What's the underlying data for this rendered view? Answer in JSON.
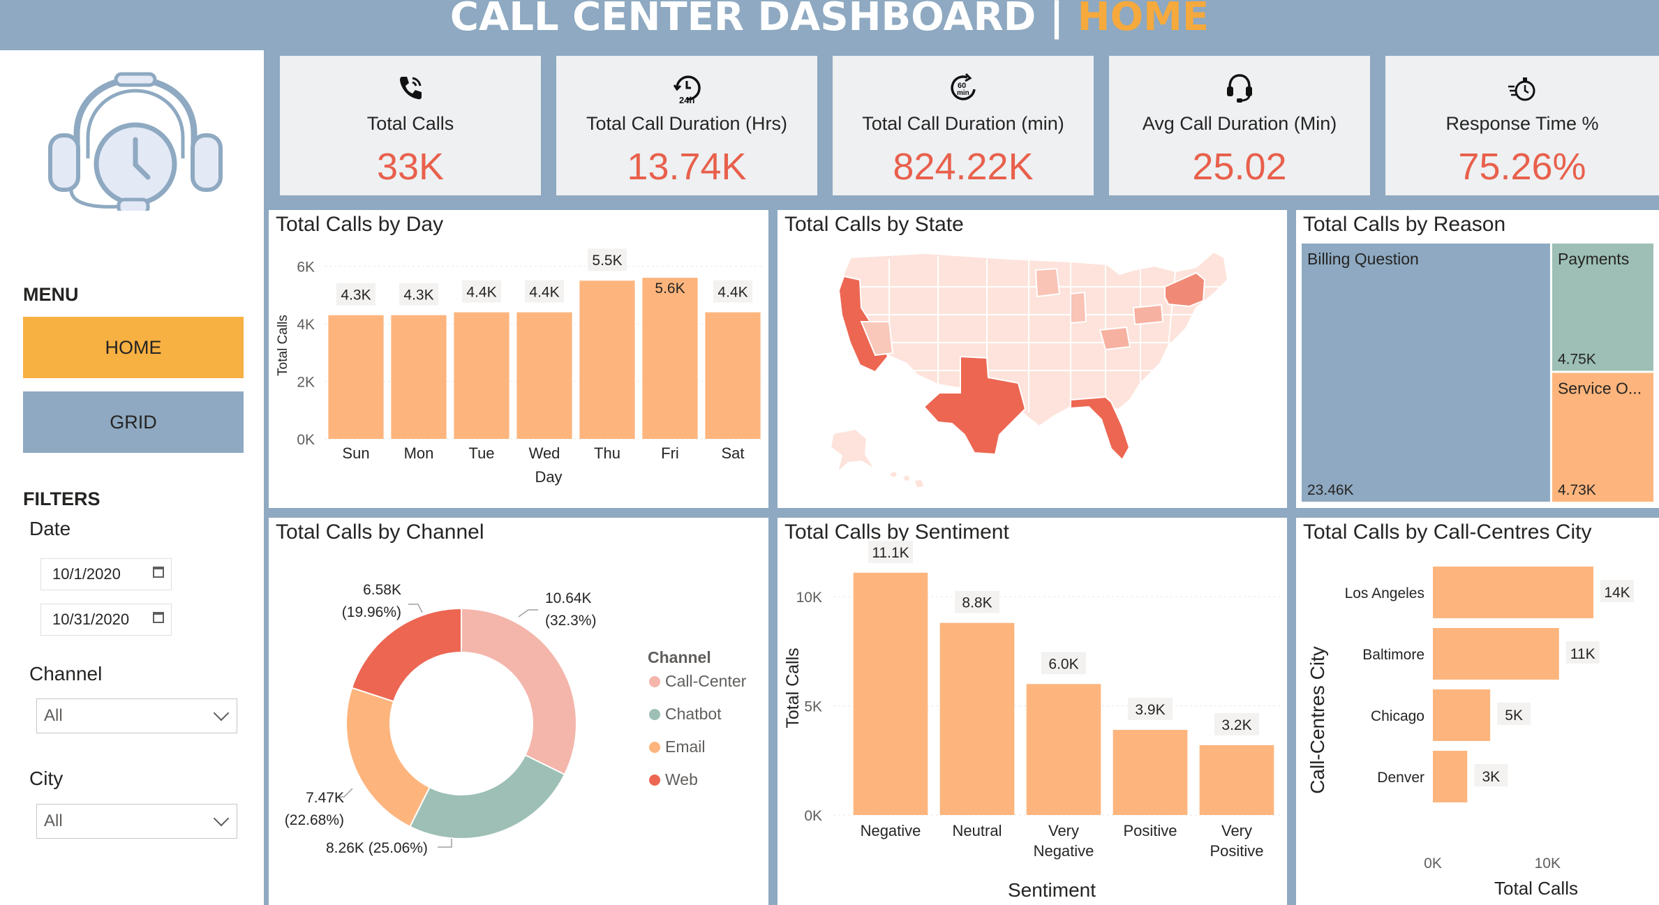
{
  "header": {
    "title": "CALL CENTER DASHBOARD",
    "separator": "|",
    "page": "HOME"
  },
  "sidebar": {
    "menu_heading": "MENU",
    "home_label": "HOME",
    "grid_label": "GRID",
    "filters_heading": "FILTERS",
    "date_label": "Date",
    "date_start": "10/1/2020",
    "date_end": "10/31/2020",
    "channel_label": "Channel",
    "channel_value": "All",
    "city_label": "City",
    "city_value": "All"
  },
  "kpis": [
    {
      "label": "Total Calls",
      "value": "33K",
      "icon": "phone-icon"
    },
    {
      "label": "Total Call Duration (Hrs)",
      "value": "13.74K",
      "icon": "clock-24h-icon"
    },
    {
      "label": "Total Call Duration (min)",
      "value": "824.22K",
      "icon": "timer-60min-icon"
    },
    {
      "label": "Avg Call Duration (Min)",
      "value": "25.02",
      "icon": "headset-icon"
    },
    {
      "label": "Response Time %",
      "value": "75.26%",
      "icon": "stopwatch-icon"
    }
  ],
  "colors": {
    "accent": "#e8604c",
    "bar": "#fdb57d",
    "steel": "#8ea9c1",
    "teal": "#9dbfb5",
    "pink": "#f4b6ab",
    "red": "#ec6652"
  },
  "panels": {
    "day": {
      "title": "Total Calls by Day"
    },
    "state": {
      "title": "Total Calls by State"
    },
    "reason": {
      "title": "Total Calls by Reason"
    },
    "channel": {
      "title": "Total Calls by Channel"
    },
    "sentiment": {
      "title": "Total Calls by Sentiment"
    },
    "city": {
      "title": "Total Calls by Call-Centres City"
    }
  },
  "chart_data": [
    {
      "id": "day",
      "type": "bar",
      "title": "Total Calls by Day",
      "xlabel": "Day",
      "ylabel": "Total Calls",
      "categories": [
        "Sun",
        "Mon",
        "Tue",
        "Wed",
        "Thu",
        "Fri",
        "Sat"
      ],
      "values": [
        4300,
        4300,
        4400,
        4400,
        5500,
        5600,
        4400
      ],
      "data_labels": [
        "4.3K",
        "4.3K",
        "4.4K",
        "4.4K",
        "5.5K",
        "5.6K",
        "4.4K"
      ],
      "yticks": [
        "0K",
        "2K",
        "4K",
        "6K"
      ],
      "ylim": [
        0,
        6500
      ],
      "grid": true
    },
    {
      "id": "state",
      "type": "map",
      "title": "Total Calls by State",
      "highlight": [
        "California",
        "Texas",
        "Florida",
        "New York"
      ]
    },
    {
      "id": "reason",
      "type": "treemap",
      "title": "Total Calls by Reason",
      "items": [
        {
          "name": "Billing Question",
          "value": 23460,
          "label": "23.46K"
        },
        {
          "name": "Payments",
          "value": 4750,
          "label": "4.75K"
        },
        {
          "name": "Service O...",
          "value": 4730,
          "label": "4.73K"
        }
      ]
    },
    {
      "id": "channel",
      "type": "pie",
      "title": "Total Calls by Channel",
      "legend_title": "Channel",
      "legend_position": "right",
      "slices": [
        {
          "name": "Call-Center",
          "value": 10640,
          "label": "10.64K",
          "pct": "(32.3%)"
        },
        {
          "name": "Chatbot",
          "value": 8260,
          "label": "8.26K (25.06%)",
          "pct": ""
        },
        {
          "name": "Email",
          "value": 7470,
          "label": "7.47K",
          "pct": "(22.68%)"
        },
        {
          "name": "Web",
          "value": 6580,
          "label": "6.58K",
          "pct": "(19.96%)"
        }
      ]
    },
    {
      "id": "sentiment",
      "type": "bar",
      "title": "Total Calls by Sentiment",
      "xlabel": "Sentiment",
      "ylabel": "Total Calls",
      "categories": [
        "Negative",
        "Neutral",
        "Very Negative",
        "Positive",
        "Very Positive"
      ],
      "values": [
        11100,
        8800,
        6000,
        3900,
        3200
      ],
      "data_labels": [
        "11.1K",
        "8.8K",
        "6.0K",
        "3.9K",
        "3.2K"
      ],
      "yticks": [
        "0K",
        "5K",
        "10K"
      ],
      "ylim": [
        0,
        11700
      ],
      "grid": true
    },
    {
      "id": "city",
      "type": "bar",
      "orientation": "horizontal",
      "title": "Total Calls by Call-Centres City",
      "xlabel": "Total Calls",
      "ylabel": "Call-Centres City",
      "categories": [
        "Los Angeles",
        "Baltimore",
        "Chicago",
        "Denver"
      ],
      "values": [
        14000,
        11000,
        5000,
        3000
      ],
      "data_labels": [
        "14K",
        "11K",
        "5K",
        "3K"
      ],
      "xticks": [
        "0K",
        "10K"
      ],
      "xlim": [
        0,
        14000
      ]
    }
  ]
}
